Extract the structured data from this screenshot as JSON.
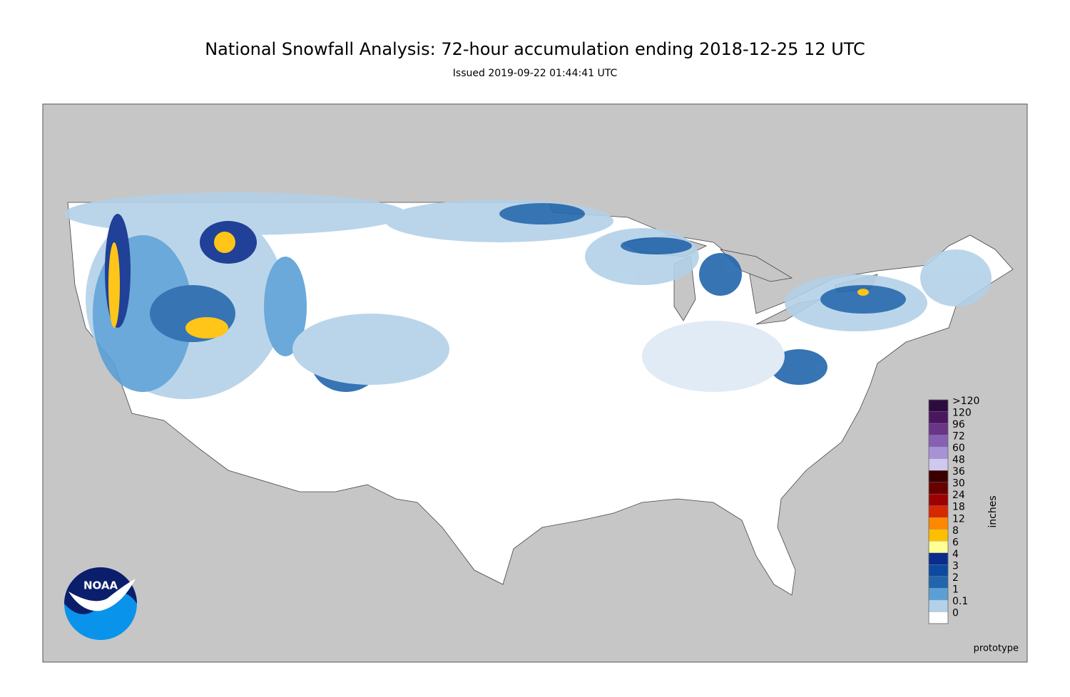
{
  "title": "National Snowfall Analysis: 72-hour accumulation ending 2018-12-25 12 UTC",
  "subtitle": "Issued 2019-09-22 01:44:41 UTC",
  "logo": "NOAA",
  "footer": "prototype",
  "legend": {
    "unit": "inches",
    "levels": [
      {
        "label": ">120",
        "color": "#2d0b3f"
      },
      {
        "label": "120",
        "color": "#4a1660"
      },
      {
        "label": "96",
        "color": "#6a3487"
      },
      {
        "label": "72",
        "color": "#8660b3"
      },
      {
        "label": "60",
        "color": "#a792d6"
      },
      {
        "label": "48",
        "color": "#cfc9f0"
      },
      {
        "label": "36",
        "color": "#3a0000"
      },
      {
        "label": "30",
        "color": "#690000"
      },
      {
        "label": "24",
        "color": "#9c0000"
      },
      {
        "label": "18",
        "color": "#d82800"
      },
      {
        "label": "12",
        "color": "#ff8800"
      },
      {
        "label": "8",
        "color": "#ffbf00"
      },
      {
        "label": "6",
        "color": "#ffff96"
      },
      {
        "label": "4",
        "color": "#0a2c8c"
      },
      {
        "label": "3",
        "color": "#0b4aa0"
      },
      {
        "label": "2",
        "color": "#2166ac"
      },
      {
        "label": "1",
        "color": "#5aa0d6"
      },
      {
        "label": "0.1",
        "color": "#b3d1e8"
      },
      {
        "label": "0",
        "color": "#ffffff"
      }
    ]
  }
}
